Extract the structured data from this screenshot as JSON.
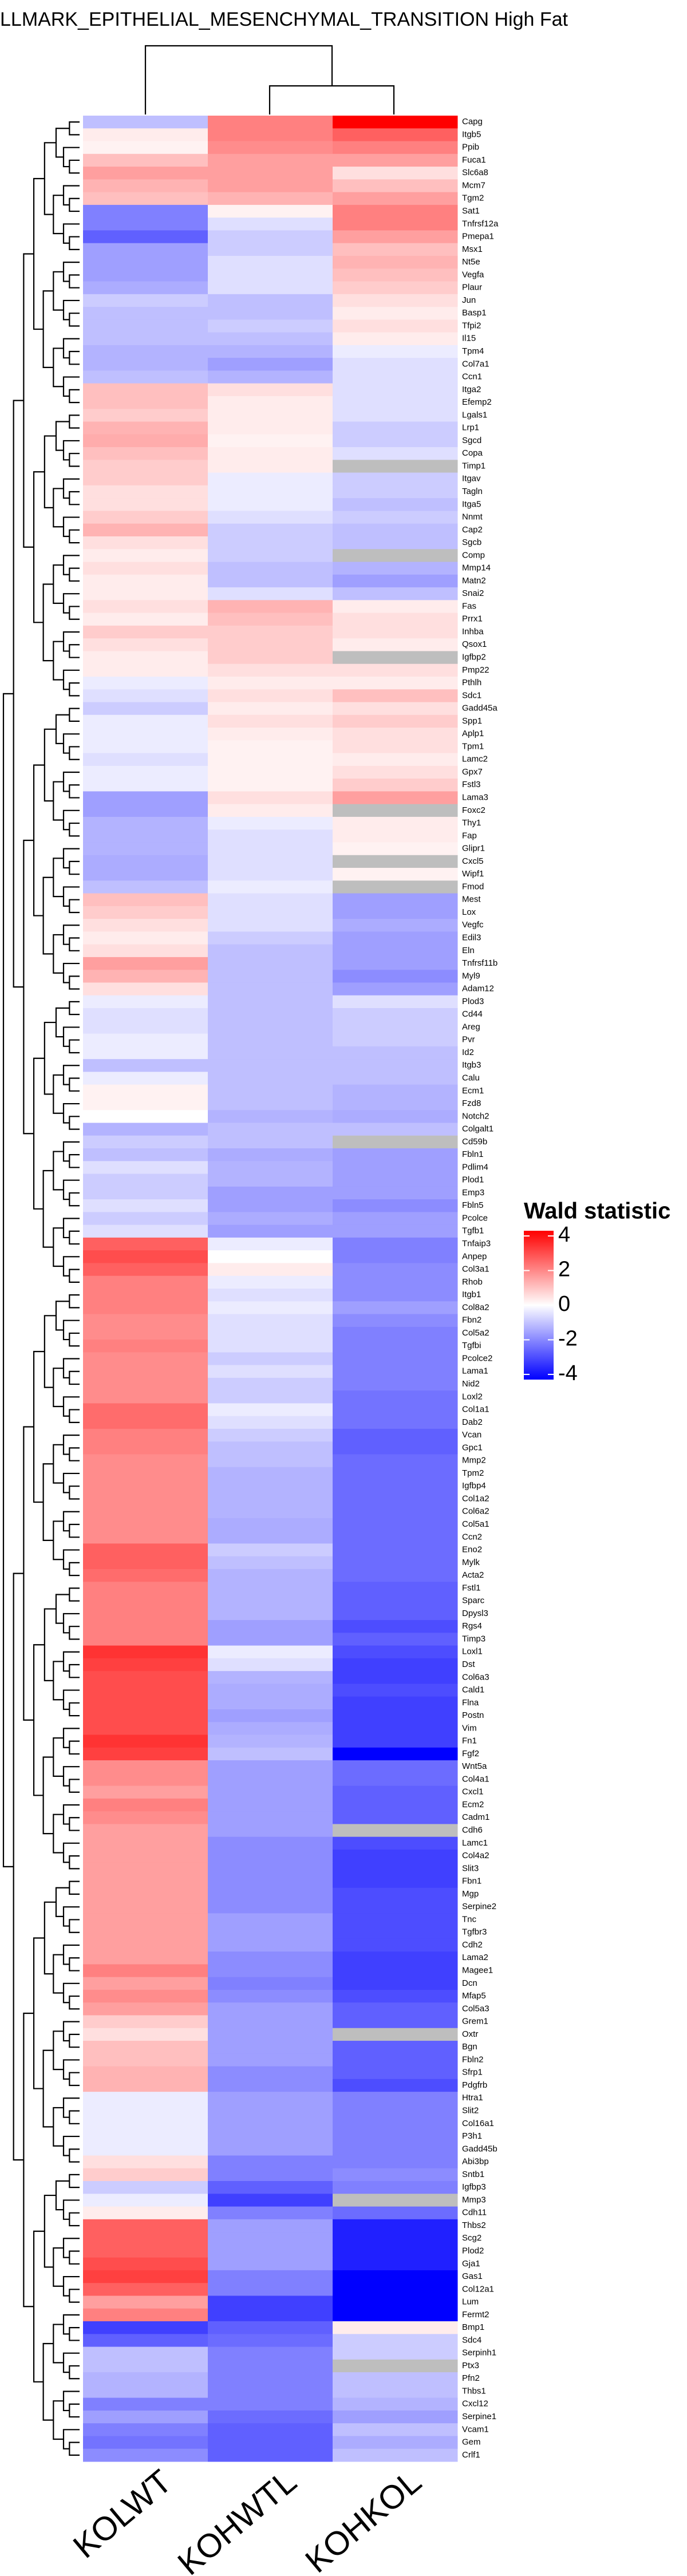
{
  "chart_data": {
    "type": "heatmap",
    "title": "LLMARK_EPITHELIAL_MESENCHYMAL_TRANSITION High Fat",
    "columns": [
      "KOLWT",
      "KOHWTL",
      "KOHKOL"
    ],
    "rows": [
      "Capg",
      "Itgb5",
      "Ppib",
      "Fuca1",
      "Slc6a8",
      "Mcm7",
      "Tgm2",
      "Sat1",
      "Tnfrsf12a",
      "Pmepa1",
      "Msx1",
      "Nt5e",
      "Vegfa",
      "Plaur",
      "Jun",
      "Basp1",
      "Tfpi2",
      "Il15",
      "Tpm4",
      "Col7a1",
      "Ccn1",
      "Itga2",
      "Efemp2",
      "Lgals1",
      "Lrp1",
      "Sgcd",
      "Copa",
      "Timp1",
      "Itgav",
      "Tagln",
      "Itga5",
      "Nnmt",
      "Cap2",
      "Sgcb",
      "Comp",
      "Mmp14",
      "Matn2",
      "Snai2",
      "Fas",
      "Prrx1",
      "Inhba",
      "Qsox1",
      "Igfbp2",
      "Pmp22",
      "Pthlh",
      "Sdc1",
      "Gadd45a",
      "Spp1",
      "Aplp1",
      "Tpm1",
      "Lamc2",
      "Gpx7",
      "Fstl3",
      "Lama3",
      "Foxc2",
      "Thy1",
      "Fap",
      "Glipr1",
      "Cxcl5",
      "Wipf1",
      "Fmod",
      "Mest",
      "Lox",
      "Vegfc",
      "Edil3",
      "Eln",
      "Tnfrsf11b",
      "Myl9",
      "Adam12",
      "Plod3",
      "Cd44",
      "Areg",
      "Pvr",
      "Id2",
      "Itgb3",
      "Calu",
      "Ecm1",
      "Fzd8",
      "Notch2",
      "Colgalt1",
      "Cd59b",
      "Fbln1",
      "Pdlim4",
      "Plod1",
      "Emp3",
      "Fbln5",
      "Pcolce",
      "Tgfb1",
      "Tnfaip3",
      "Anpep",
      "Col3a1",
      "Rhob",
      "Itgb1",
      "Col8a2",
      "Fbn2",
      "Col5a2",
      "Tgfbi",
      "Pcolce2",
      "Lama1",
      "Nid2",
      "Loxl2",
      "Col1a1",
      "Dab2",
      "Vcan",
      "Gpc1",
      "Mmp2",
      "Tpm2",
      "Igfbp4",
      "Col1a2",
      "Col6a2",
      "Col5a1",
      "Ccn2",
      "Eno2",
      "Mylk",
      "Acta2",
      "Fstl1",
      "Sparc",
      "Dpysl3",
      "Rgs4",
      "Timp3",
      "Loxl1",
      "Dst",
      "Col6a3",
      "Cald1",
      "Flna",
      "Postn",
      "Vim",
      "Fn1",
      "Fgf2",
      "Wnt5a",
      "Col4a1",
      "Cxcl1",
      "Ecm2",
      "Cadm1",
      "Cdh6",
      "Lamc1",
      "Col4a2",
      "Slit3",
      "Fbn1",
      "Mgp",
      "Serpine2",
      "Tnc",
      "Tgfbr3",
      "Cdh2",
      "Lama2",
      "Magee1",
      "Dcn",
      "Mfap5",
      "Col5a3",
      "Grem1",
      "Oxtr",
      "Bgn",
      "Fbln2",
      "Sfrp1",
      "Pdgfrb",
      "Htra1",
      "Slit2",
      "Col16a1",
      "P3h1",
      "Gadd45b",
      "Abi3bp",
      "Sntb1",
      "Igfbp3",
      "Mmp3",
      "Cdh11",
      "Thbs2",
      "Scg2",
      "Plod2",
      "Gja1",
      "Gas1",
      "Col12a1",
      "Lum",
      "Fermt2",
      "Bmp1",
      "Sdc4",
      "Serpinh1",
      "Ptx3",
      "Pfn2",
      "Thbs1",
      "Cxcl12",
      "Serpine1",
      "Vcam1",
      "Gem",
      "Crlf1"
    ],
    "values": [
      [
        -1,
        2,
        4
      ],
      [
        0.3,
        2,
        2.5
      ],
      [
        0.2,
        1.8,
        2
      ],
      [
        1,
        1.5,
        1.5
      ],
      [
        1.5,
        1.5,
        0.5
      ],
      [
        1.2,
        1.5,
        1
      ],
      [
        1,
        1.2,
        1.5
      ],
      [
        -2,
        0.2,
        2
      ],
      [
        -2,
        -0.5,
        2
      ],
      [
        -2.5,
        -0.8,
        1.5
      ],
      [
        -1.5,
        -0.8,
        1
      ],
      [
        -1.5,
        -0.5,
        1.2
      ],
      [
        -1.5,
        -0.5,
        1
      ],
      [
        -1.3,
        -0.5,
        0.8
      ],
      [
        -0.8,
        -1,
        0.5
      ],
      [
        -1,
        -1,
        0.3
      ],
      [
        -1,
        -0.8,
        0.5
      ],
      [
        -1,
        -1,
        0.3
      ],
      [
        -1.2,
        -1.2,
        -0.3
      ],
      [
        -1.2,
        -1.5,
        -0.5
      ],
      [
        -1,
        -1.2,
        -0.5
      ],
      [
        1,
        0.5,
        -0.5
      ],
      [
        1,
        0.3,
        -0.5
      ],
      [
        0.8,
        0.3,
        -0.5
      ],
      [
        1.2,
        0.3,
        -0.8
      ],
      [
        1.3,
        0.2,
        -0.8
      ],
      [
        1,
        0.3,
        -0.5
      ],
      [
        0.8,
        0.3,
        null
      ],
      [
        0.8,
        -0.3,
        -0.8
      ],
      [
        0.5,
        -0.3,
        -0.8
      ],
      [
        0.5,
        -0.3,
        -1
      ],
      [
        0.8,
        -0.5,
        -0.8
      ],
      [
        1.2,
        -0.8,
        -1
      ],
      [
        0.5,
        -0.8,
        -1
      ],
      [
        0.3,
        -0.8,
        null
      ],
      [
        0.5,
        -1,
        -1.2
      ],
      [
        0.3,
        -1,
        -1.5
      ],
      [
        0.3,
        -0.5,
        -1
      ],
      [
        0.5,
        1.2,
        0.3
      ],
      [
        0.3,
        1,
        0.5
      ],
      [
        0.8,
        0.8,
        0.5
      ],
      [
        0.5,
        0.8,
        0.3
      ],
      [
        0.3,
        0.8,
        null
      ],
      [
        0.3,
        0.5,
        0.5
      ],
      [
        -0.3,
        0.3,
        0.3
      ],
      [
        -0.5,
        0.5,
        1
      ],
      [
        -0.8,
        0.3,
        0.5
      ],
      [
        -0.3,
        0.5,
        0.8
      ],
      [
        -0.3,
        0.3,
        0.5
      ],
      [
        -0.3,
        0.2,
        0.5
      ],
      [
        -0.5,
        0.2,
        0.3
      ],
      [
        -0.3,
        0.2,
        0.5
      ],
      [
        -0.3,
        0.2,
        0.8
      ],
      [
        -1.5,
        0.5,
        1.5
      ],
      [
        -1.5,
        0.3,
        null
      ],
      [
        -1.2,
        -0.3,
        0.3
      ],
      [
        -1.2,
        -0.5,
        0.3
      ],
      [
        -1.2,
        -0.5,
        0.2
      ],
      [
        -1.3,
        -0.5,
        null
      ],
      [
        -1.3,
        -0.5,
        0.2
      ],
      [
        -1,
        -0.3,
        null
      ],
      [
        1,
        -0.5,
        -1.5
      ],
      [
        0.8,
        -0.5,
        -1.5
      ],
      [
        0.5,
        -0.5,
        -1.3
      ],
      [
        0.3,
        -0.8,
        -1.5
      ],
      [
        0.5,
        -1,
        -1.5
      ],
      [
        1.5,
        -1,
        -1.5
      ],
      [
        1.2,
        -1,
        -1.8
      ],
      [
        0.5,
        -1,
        -1.5
      ],
      [
        -0.3,
        -1,
        -0.5
      ],
      [
        -0.5,
        -1,
        -0.8
      ],
      [
        -0.5,
        -1,
        -0.8
      ],
      [
        -0.3,
        -1,
        -0.8
      ],
      [
        -0.3,
        -1,
        -1
      ],
      [
        -1,
        -1,
        -1
      ],
      [
        -0.3,
        -1,
        -1
      ],
      [
        0.2,
        -1,
        -1.2
      ],
      [
        0.2,
        -1,
        -1.2
      ],
      [
        0,
        -1.2,
        -1.3
      ],
      [
        -1.2,
        -1,
        -1
      ],
      [
        -0.8,
        -1,
        null
      ],
      [
        -1,
        -1.3,
        -1.5
      ],
      [
        -0.5,
        -1.2,
        -1.5
      ],
      [
        -0.8,
        -1.2,
        -1.5
      ],
      [
        -0.8,
        -1.5,
        -1.5
      ],
      [
        -0.5,
        -1.5,
        -1.8
      ],
      [
        -0.8,
        -1.3,
        -1.5
      ],
      [
        -0.5,
        -1.5,
        -1.5
      ],
      [
        2.5,
        -0.3,
        -2
      ],
      [
        2.8,
        0,
        -2
      ],
      [
        2.5,
        0.3,
        -1.8
      ],
      [
        2,
        -0.3,
        -1.8
      ],
      [
        2,
        -0.5,
        -1.8
      ],
      [
        2,
        -0.3,
        -1.5
      ],
      [
        1.8,
        -0.5,
        -1.8
      ],
      [
        1.8,
        -0.5,
        -2
      ],
      [
        2,
        -0.5,
        -2
      ],
      [
        1.8,
        -0.8,
        -2
      ],
      [
        1.8,
        -0.5,
        -2
      ],
      [
        1.8,
        -0.8,
        -2
      ],
      [
        1.8,
        -0.8,
        -2.2
      ],
      [
        2.3,
        -0.3,
        -2.2
      ],
      [
        2.3,
        -0.5,
        -2.2
      ],
      [
        2,
        -0.8,
        -2.5
      ],
      [
        2,
        -1,
        -2.5
      ],
      [
        1.8,
        -1,
        -2.3
      ],
      [
        1.8,
        -1.2,
        -2.3
      ],
      [
        1.8,
        -1.2,
        -2.3
      ],
      [
        1.8,
        -1.2,
        -2.3
      ],
      [
        1.8,
        -1.2,
        -2.3
      ],
      [
        1.8,
        -1.3,
        -2.3
      ],
      [
        1.8,
        -1.3,
        -2.3
      ],
      [
        2.5,
        -0.8,
        -2.3
      ],
      [
        2.5,
        -1,
        -2.3
      ],
      [
        2.3,
        -1.2,
        -2.3
      ],
      [
        2,
        -1.2,
        -2.5
      ],
      [
        2,
        -1.2,
        -2.5
      ],
      [
        2,
        -1.2,
        -2.5
      ],
      [
        2,
        -1.5,
        -2.8
      ],
      [
        2,
        -1.5,
        -2.5
      ],
      [
        3.2,
        -0.3,
        -2.8
      ],
      [
        3,
        -0.5,
        -3
      ],
      [
        2.8,
        -1.2,
        -3
      ],
      [
        2.8,
        -1.3,
        -2.8
      ],
      [
        2.8,
        -1.3,
        -3
      ],
      [
        2.8,
        -1.5,
        -3
      ],
      [
        2.8,
        -1.3,
        -3
      ],
      [
        3.2,
        -1.2,
        -3
      ],
      [
        3,
        -1,
        -4
      ],
      [
        1.8,
        -1.5,
        -2.3
      ],
      [
        1.8,
        -1.5,
        -2.3
      ],
      [
        1.5,
        -1.5,
        -2.5
      ],
      [
        2,
        -1.5,
        -2.5
      ],
      [
        1.8,
        -1.5,
        -2.5
      ],
      [
        1.5,
        -1.5,
        null
      ],
      [
        1.5,
        -1.8,
        -2.8
      ],
      [
        1.5,
        -1.8,
        -3
      ],
      [
        1.5,
        -1.8,
        -3
      ],
      [
        1.5,
        -1.8,
        -3
      ],
      [
        1.5,
        -1.8,
        -2.8
      ],
      [
        1.5,
        -1.8,
        -2.8
      ],
      [
        1.5,
        -1.5,
        -2.8
      ],
      [
        1.5,
        -1.5,
        -2.8
      ],
      [
        1.5,
        -1.5,
        -2.8
      ],
      [
        1.5,
        -1.8,
        -3
      ],
      [
        2,
        -1.8,
        -3
      ],
      [
        1.5,
        -2,
        -3
      ],
      [
        1.8,
        -1.8,
        -2.8
      ],
      [
        1.5,
        -1.5,
        -2.5
      ],
      [
        0.8,
        -1.5,
        -2.5
      ],
      [
        0.5,
        -1.5,
        null
      ],
      [
        1,
        -1.5,
        -2.5
      ],
      [
        1,
        -1.5,
        -2.5
      ],
      [
        1.2,
        -1.8,
        -2.5
      ],
      [
        1.2,
        -1.8,
        -2.8
      ],
      [
        -0.3,
        -1.5,
        -2
      ],
      [
        -0.3,
        -1.5,
        -2
      ],
      [
        -0.3,
        -1.5,
        -2
      ],
      [
        -0.3,
        -1.5,
        -2
      ],
      [
        -0.3,
        -1.5,
        -2
      ],
      [
        0.5,
        -2,
        -2
      ],
      [
        0.8,
        -2,
        -1.8
      ],
      [
        -0.8,
        -2.5,
        -2
      ],
      [
        -0.3,
        -3,
        null
      ],
      [
        0.3,
        -2,
        -2.3
      ],
      [
        2.5,
        -1.5,
        -3.5
      ],
      [
        2.5,
        -1.5,
        -3.5
      ],
      [
        2.5,
        -1.5,
        -3.5
      ],
      [
        2.8,
        -1.5,
        -3.5
      ],
      [
        3,
        -2,
        -4
      ],
      [
        2.5,
        -2,
        -4
      ],
      [
        1.5,
        -3,
        -4
      ],
      [
        2,
        -3,
        -4
      ],
      [
        -3,
        -2.5,
        0.3
      ],
      [
        -2.5,
        -2.3,
        -0.8
      ],
      [
        -1,
        -2,
        -0.8
      ],
      [
        -1,
        -2,
        null
      ],
      [
        -1.2,
        -2,
        -1
      ],
      [
        -1.2,
        -2,
        -1
      ],
      [
        -2,
        -2,
        -1.2
      ],
      [
        -1.5,
        -2.3,
        -1.5
      ],
      [
        -2,
        -2.5,
        -1
      ],
      [
        -2.2,
        -2.5,
        -1.3
      ],
      [
        -1.8,
        -2.5,
        -1
      ]
    ],
    "colors": {
      "low": "#0000ff",
      "mid": "#ffffff",
      "high": "#ff0000",
      "na": "#bebebe"
    },
    "legend": {
      "title": "Wald statistic",
      "zlim": [
        -4.3,
        4.3
      ],
      "zticks": [
        4,
        2,
        0,
        -2,
        -4
      ]
    }
  }
}
